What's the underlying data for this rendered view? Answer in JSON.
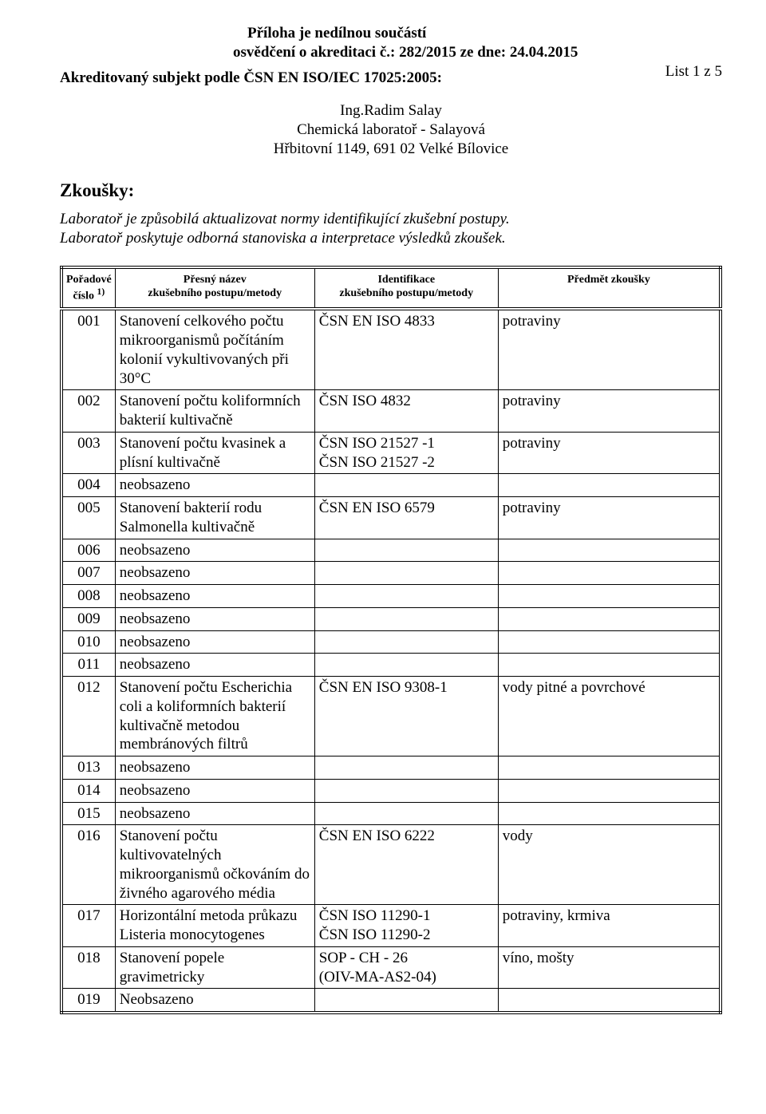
{
  "header": {
    "line1": "Příloha je nedílnou součástí",
    "line2": "osvědčení o akreditaci č.: 282/2015  ze dne: 24.04.2015",
    "page_count": "List 1 z 5",
    "accredited_subject": "Akreditovaný subjekt podle ČSN EN ISO/IEC 17025:2005:"
  },
  "company": {
    "name": "Ing.Radim Salay",
    "lab": "Chemická laboratoř - Salayová",
    "address": "Hřbitovní 1149, 691 02  Velké Bílovice"
  },
  "tests_section": {
    "title": "Zkoušky:",
    "note1": "Laboratoř je způsobilá aktualizovat normy identifikující zkušební postupy.",
    "note2": "Laboratoř poskytuje odborná stanoviska a interpretace výsledků zkoušek."
  },
  "table": {
    "headers": {
      "col1a": "Pořadové",
      "col1b": "číslo",
      "col1sup": "1)",
      "col2a": "Přesný název",
      "col2b": "zkušebního postupu/metody",
      "col3a": "Identifikace",
      "col3b": "zkušebního postupu/metody",
      "col4": "Předmět zkoušky"
    },
    "rows": [
      {
        "n": "001",
        "method": "Stanovení celkového počtu mikroorganismů počítáním kolonií vykultivovaných při 30°C",
        "ident": "ČSN EN ISO 4833",
        "subject": "potraviny"
      },
      {
        "n": "002",
        "method": "Stanovení počtu koliformních bakterií kultivačně",
        "ident": "ČSN ISO 4832",
        "subject": "potraviny"
      },
      {
        "n": "003",
        "method": "Stanovení počtu kvasinek a plísní kultivačně",
        "ident": "ČSN ISO 21527 -1\nČSN ISO 21527 -2",
        "subject": "potraviny"
      },
      {
        "n": "004",
        "method": "neobsazeno",
        "ident": "",
        "subject": ""
      },
      {
        "n": "005",
        "method": "Stanovení bakterií rodu Salmonella kultivačně",
        "ident": "ČSN EN ISO 6579",
        "subject": "potraviny"
      },
      {
        "n": "006",
        "method": "neobsazeno",
        "ident": "",
        "subject": ""
      },
      {
        "n": "007",
        "method": "neobsazeno",
        "ident": "",
        "subject": ""
      },
      {
        "n": "008",
        "method": "neobsazeno",
        "ident": "",
        "subject": ""
      },
      {
        "n": "009",
        "method": "neobsazeno",
        "ident": "",
        "subject": ""
      },
      {
        "n": "010",
        "method": "neobsazeno",
        "ident": "",
        "subject": ""
      },
      {
        "n": "011",
        "method": "neobsazeno",
        "ident": "",
        "subject": ""
      },
      {
        "n": "012",
        "method": "Stanovení počtu Escherichia coli a koliformních bakterií kultivačně metodou membránových filtrů",
        "ident": "ČSN EN ISO 9308-1",
        "subject": "vody pitné a povrchové"
      },
      {
        "n": "013",
        "method": "neobsazeno",
        "ident": "",
        "subject": ""
      },
      {
        "n": "014",
        "method": "neobsazeno",
        "ident": "",
        "subject": ""
      },
      {
        "n": "015",
        "method": "neobsazeno",
        "ident": "",
        "subject": ""
      },
      {
        "n": "016",
        "method": "Stanovení počtu kultivovatelných mikroorganismů očkováním do živného agarového média",
        "ident": "ČSN EN ISO 6222",
        "subject": "vody"
      },
      {
        "n": "017",
        "method": "Horizontální metoda průkazu Listeria monocytogenes",
        "ident": "ČSN ISO 11290-1\nČSN ISO 11290-2",
        "subject": "potraviny, krmiva"
      },
      {
        "n": "018",
        "method": "Stanovení popele gravimetricky",
        "ident": "SOP - CH -  26\n(OIV-MA-AS2-04)",
        "subject": "víno, mošty"
      },
      {
        "n": "019",
        "method": "Neobsazeno",
        "ident": "",
        "subject": ""
      }
    ]
  }
}
